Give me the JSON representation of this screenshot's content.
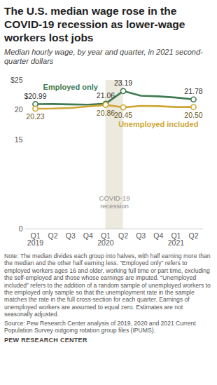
{
  "chart_data": {
    "type": "line",
    "title": "The U.S. median wage rose in the COVID-19 recession as lower-wage workers lost jobs",
    "subtitle": "Median hourly wage, by year and quarter, in 2021 second-quarter dollars",
    "categories": [
      "Q1\n2019",
      "Q2",
      "Q3",
      "Q4",
      "Q1\n2020",
      "Q2",
      "Q3",
      "Q4",
      "Q1\n2021",
      "Q2"
    ],
    "series": [
      {
        "name": "Employed only",
        "color": "#3f7a50",
        "marker": "circle",
        "values": [
          20.99,
          21.0,
          20.95,
          20.9,
          21.06,
          23.19,
          22.4,
          22.3,
          22.1,
          21.78
        ],
        "value_labels": [
          "$20.99",
          null,
          null,
          null,
          "21.06",
          "23.19",
          null,
          null,
          null,
          "21.78"
        ]
      },
      {
        "name": "Unemployed included",
        "color": "#cfa633",
        "marker": "circle",
        "values": [
          20.23,
          20.25,
          20.35,
          20.6,
          20.86,
          20.45,
          20.7,
          20.65,
          20.5,
          20.5
        ],
        "value_labels": [
          "20.23",
          null,
          null,
          null,
          "20.86",
          "20.45",
          null,
          null,
          null,
          "20.50"
        ]
      }
    ],
    "annotations": [
      {
        "text": "COVID-19\nrecession",
        "x_start": 4,
        "x_end": 5
      }
    ],
    "ylim": [
      0,
      25
    ],
    "yticks": [
      0,
      15,
      20,
      {
        "value": 25,
        "label": "$25"
      }
    ],
    "grid": false,
    "data_labels": true,
    "note": "Note: The median divides each group into halves, with half earning more than the median and the other half earning less. “Employed only” refers to employed workers ages 16 and older, working full time or part time, excluding the self-employed and those whose earnings are imputed. “Unemployed included” refers to the addition of a random sample of unemployed workers to the employed only sample so that the unemployment rate in the sample matches the rate in the full cross-section for each quarter. Earnings of unemployed workers are assumed to equal zero. Estimates are not seasonally adjusted.",
    "source": "Source: Pew Research Center analysis of 2019, 2020 and 2021 Current Population Survey outgoing rotation group files (IPUMS).",
    "credit": "PEW RESEARCH CENTER"
  }
}
